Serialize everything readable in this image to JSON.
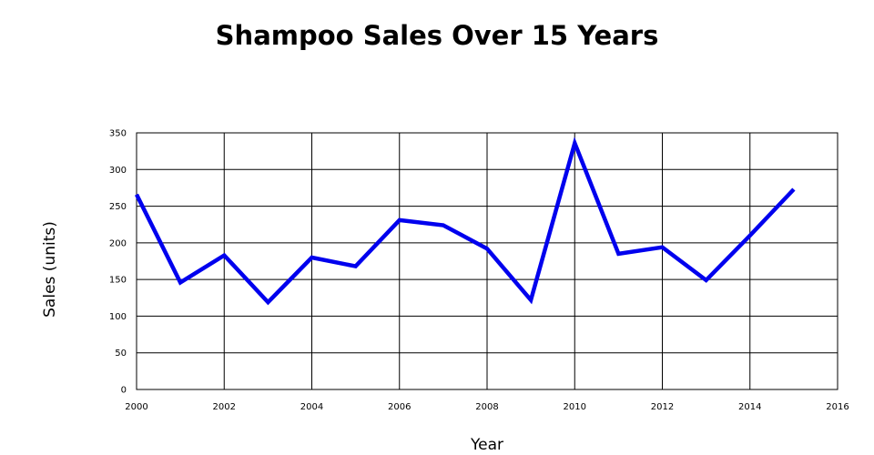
{
  "chart_data": {
    "type": "line",
    "title": "Shampoo Sales Over 15 Years",
    "xlabel": "Year",
    "ylabel": "Sales (units)",
    "xlim": [
      2000,
      2016
    ],
    "ylim": [
      0,
      350
    ],
    "xticks": [
      2000,
      2002,
      2004,
      2006,
      2008,
      2010,
      2012,
      2014,
      2016
    ],
    "yticks": [
      0,
      50,
      100,
      150,
      200,
      250,
      300,
      350
    ],
    "grid": true,
    "line_color": "#0000ee",
    "series": [
      {
        "x": [
          2000,
          2001,
          2002,
          2003,
          2004,
          2005,
          2006,
          2007,
          2008,
          2009,
          2010,
          2011,
          2012,
          2013,
          2014,
          2015
        ],
        "values": [
          266,
          146,
          183,
          119,
          180,
          168,
          231,
          224,
          192,
          122,
          336,
          185,
          194,
          149,
          210,
          273
        ]
      }
    ]
  }
}
